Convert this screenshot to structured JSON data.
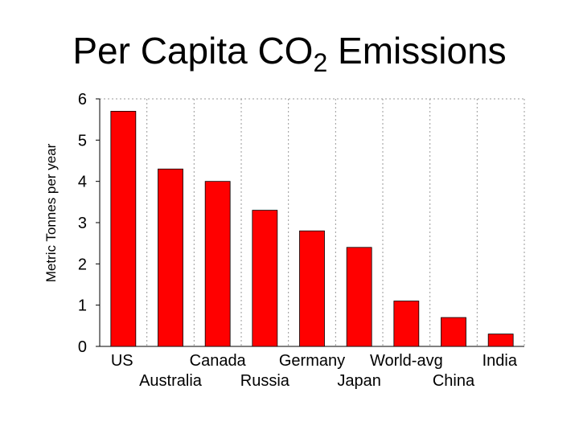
{
  "title": {
    "main": "Per Capita CO",
    "subscript": "2",
    "rest": " Emissions"
  },
  "chart_data": {
    "type": "bar",
    "title": "Per Capita CO2 Emissions",
    "ylabel": "Metric Tonnes per year",
    "xlabel": "",
    "ylim": [
      0,
      6
    ],
    "yticks": [
      0,
      1,
      2,
      3,
      4,
      5,
      6
    ],
    "categories": [
      "US",
      "Australia",
      "Canada",
      "Russia",
      "Germany",
      "Japan",
      "World-avg",
      "China",
      "India"
    ],
    "values": [
      5.7,
      4.3,
      4.0,
      3.3,
      2.8,
      2.4,
      1.1,
      0.7,
      0.3
    ],
    "bar_color": "#ff0000",
    "grid": "vertical dotted",
    "legend": "none"
  }
}
